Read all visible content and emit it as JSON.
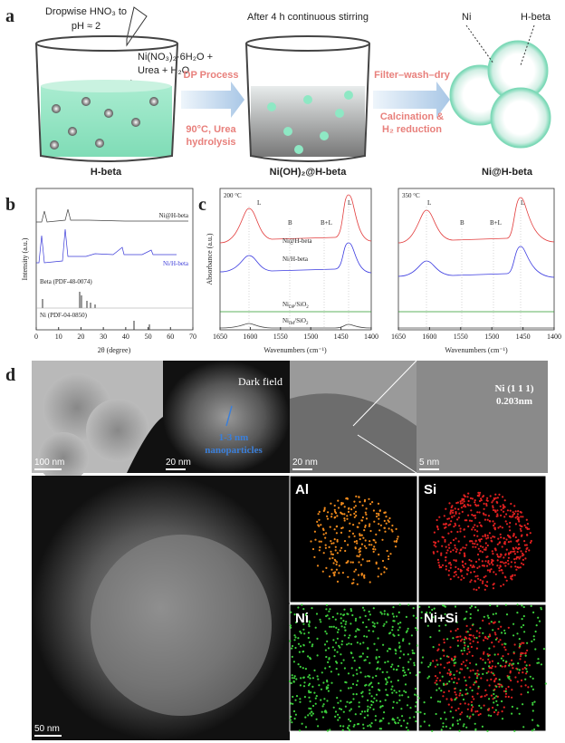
{
  "panel_a": {
    "label": "a",
    "step1_top": "Dropwise HNO₃ to",
    "step1_ph": "pH ≈ 2",
    "reagents_line1": "Ni(NO₃)₂·6H₂O +",
    "reagents_line2": "Urea + H₂O",
    "stirring": "After 4 h continuous stirring",
    "arrow1_line1": "DP Process",
    "arrow1_line2": "90°C, Urea",
    "arrow1_line3": "hydrolysis",
    "arrow2_line1": "Filter–wash–dry",
    "arrow2_line2": "Calcination &",
    "arrow2_line3": "H₂ reduction",
    "beaker1": "H-beta",
    "beaker2": "Ni(OH)₂@H-beta",
    "product": "Ni@H-beta",
    "ni_label": "Ni",
    "hbeta_label": "H-beta"
  },
  "panel_b": {
    "label": "b",
    "y_label": "Intensity (a.u.)",
    "x_label": "2θ (degree)",
    "x_ticks": [
      "0",
      "10",
      "20",
      "30",
      "40",
      "50",
      "60",
      "70"
    ],
    "series_labels": [
      "Ni@H-beta",
      "Ni/H-beta",
      "Beta (PDF-48-0074)",
      "Ni (PDF-04-0850)"
    ]
  },
  "panel_c": {
    "label": "c",
    "y_label": "Absorbance (a.u.)",
    "x_label": "Wavenumbers (cm⁻¹)",
    "x_ticks": [
      "1650",
      "1600",
      "1550",
      "1500",
      "1450",
      "1400"
    ],
    "plots": [
      {
        "temperature": "200 °C",
        "bands": [
          "L",
          "B",
          "B+L",
          "L"
        ],
        "series_labels": [
          [
            "Ni@H-beta"
          ],
          [
            "Ni/H-beta"
          ],
          [
            "Ni",
            "DP",
            "/SiO",
            "2"
          ],
          [
            "Ni",
            "IM",
            "/SiO",
            "2"
          ]
        ]
      },
      {
        "temperature": "350 °C",
        "bands": [
          "L",
          "B",
          "B+L",
          "L"
        ]
      }
    ]
  },
  "panel_d": {
    "label": "d",
    "scale_bars": [
      "100 nm",
      "20 nm",
      "20 nm",
      "5 nm",
      "50 nm"
    ],
    "dark_field": "Dark field",
    "particles_line1": "1-3 nm",
    "particles_line2": "nanoparticles",
    "lattice_line1": "Ni (1 1 1)",
    "lattice_line2": "0.203nm",
    "maps": [
      "Al",
      "Si",
      "Ni",
      "Ni+Si"
    ]
  }
}
